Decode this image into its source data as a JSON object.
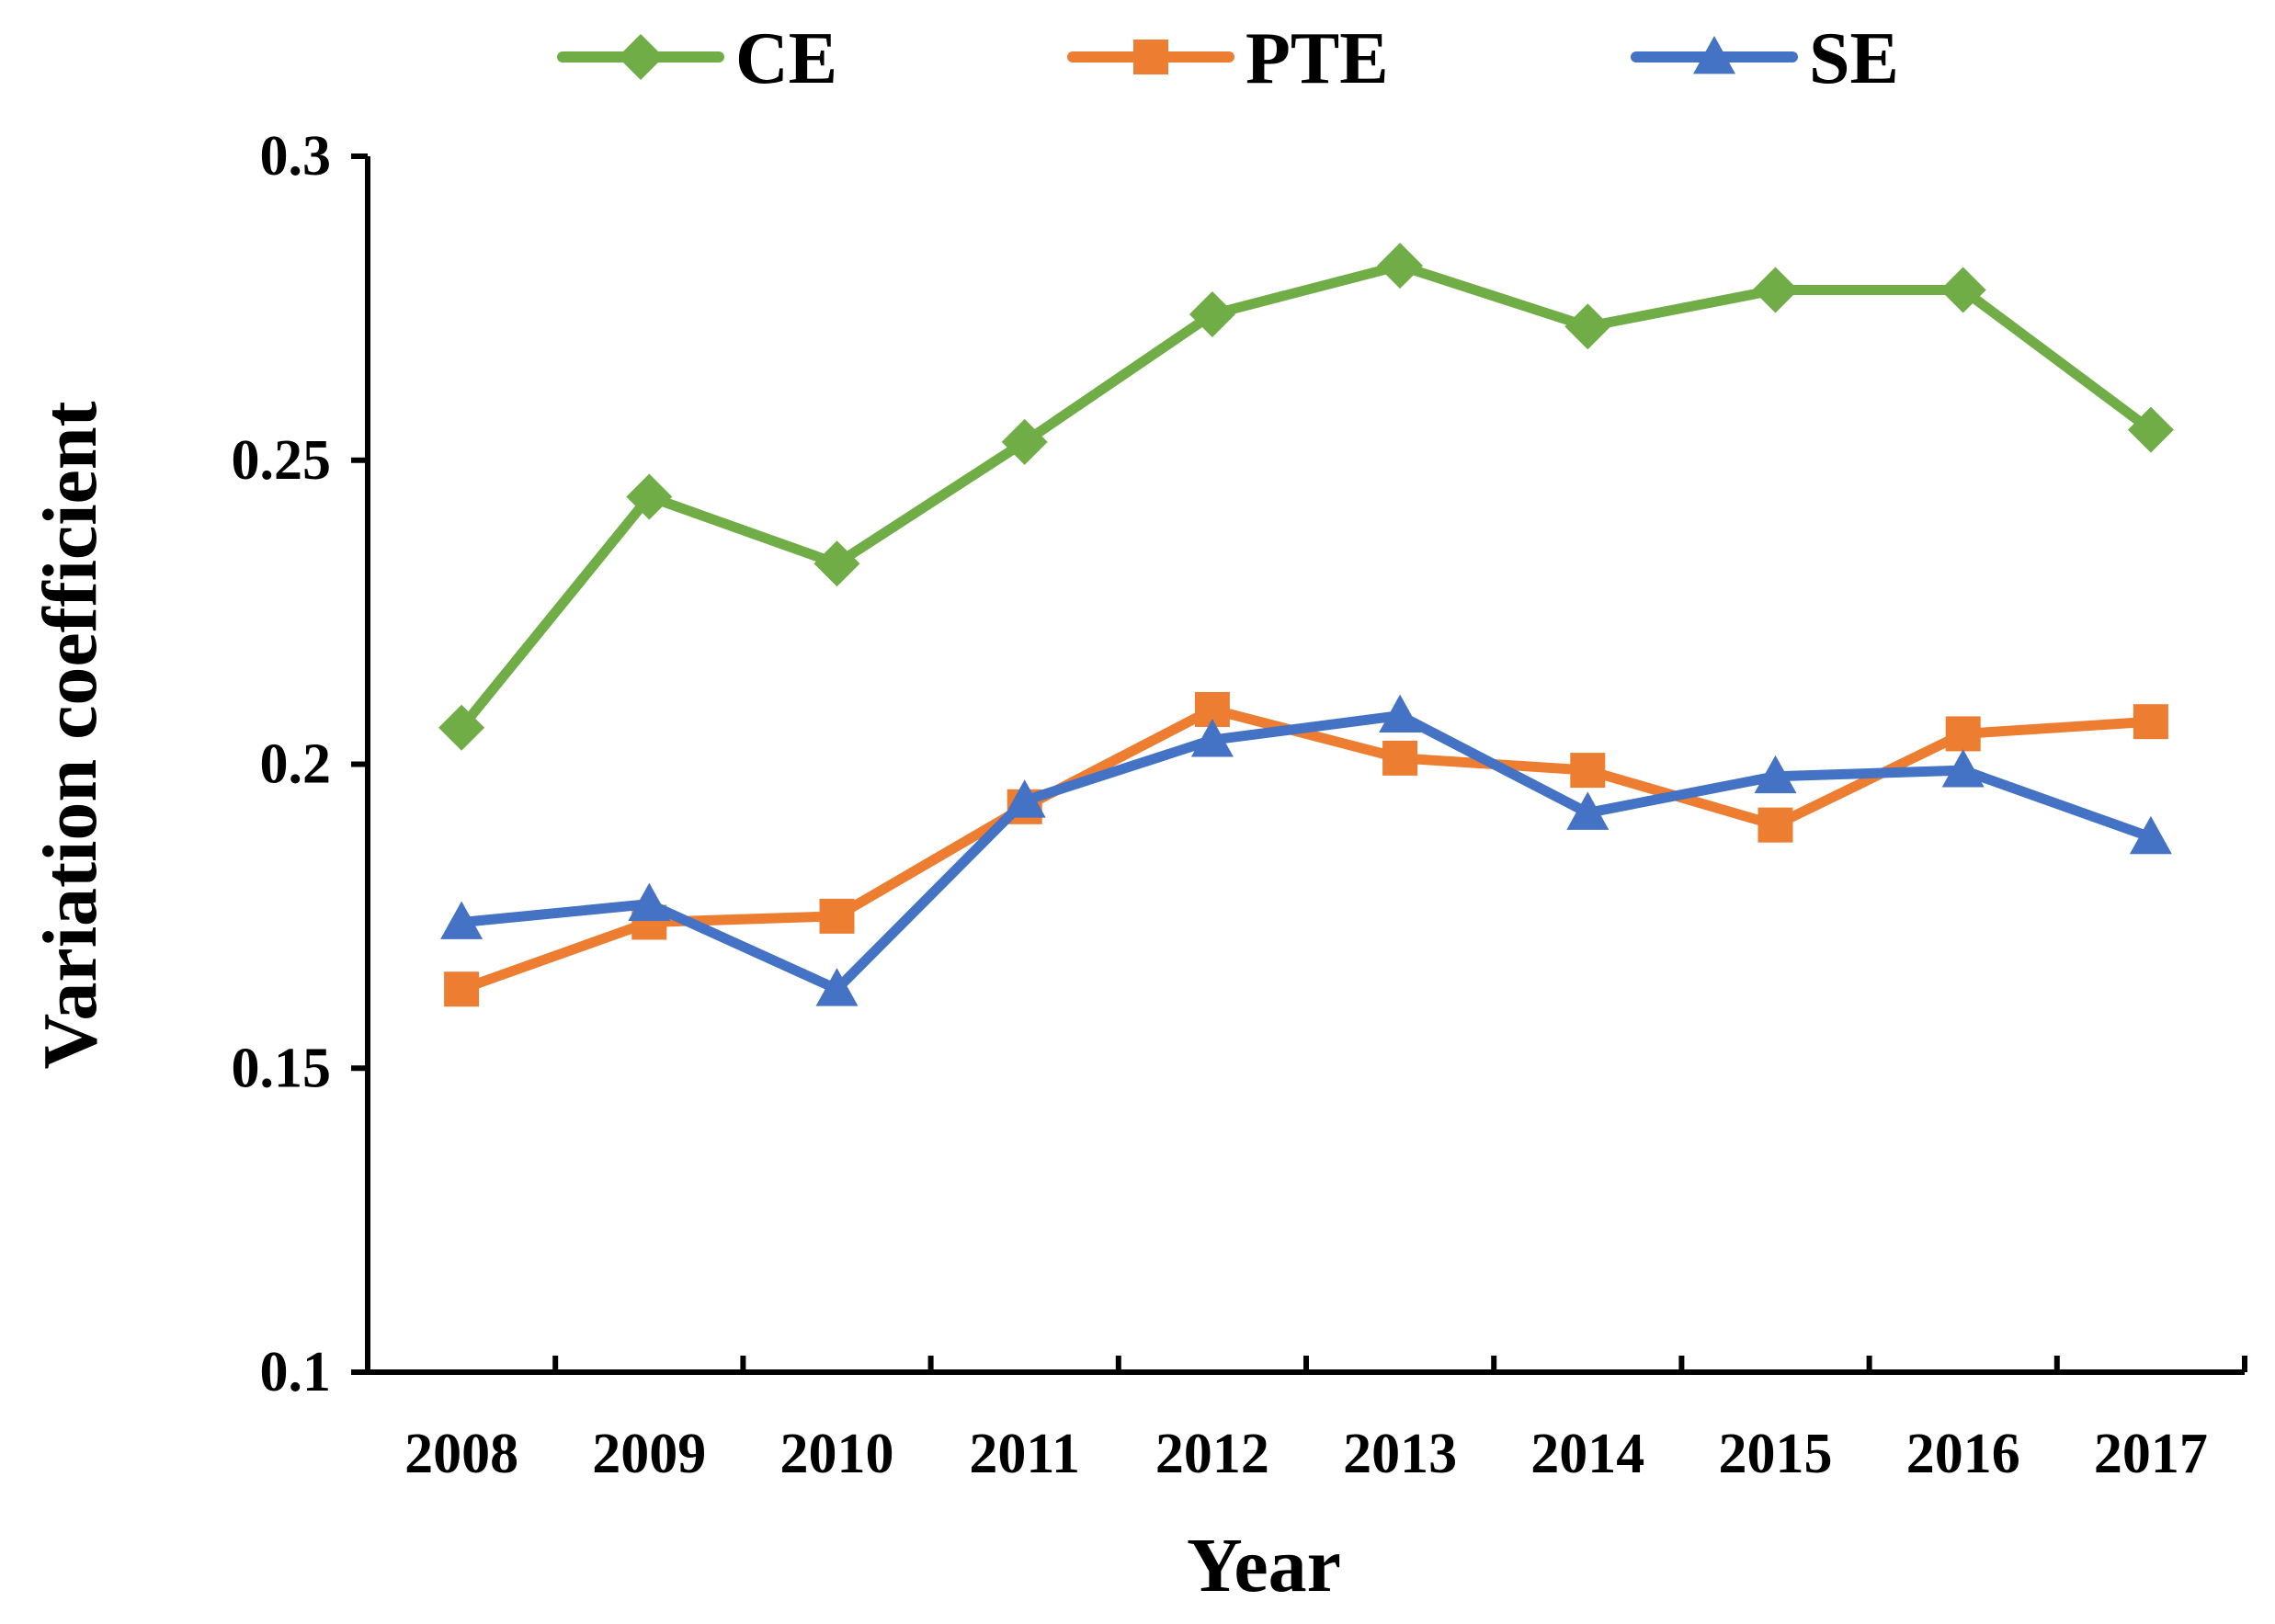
{
  "chart_data": {
    "type": "line",
    "title": "",
    "xlabel": "Year",
    "ylabel": "Variation coefficient",
    "categories": [
      "2008",
      "2009",
      "2010",
      "2011",
      "2012",
      "2013",
      "2014",
      "2015",
      "2016",
      "2017"
    ],
    "ylim": [
      0.1,
      0.3
    ],
    "yticks": [
      0.1,
      0.15,
      0.2,
      0.25,
      0.3
    ],
    "ytick_labels": [
      "0.1",
      "0.15",
      "0.2",
      "0.25",
      "0.3"
    ],
    "grid": false,
    "legend_position": "top",
    "series": [
      {
        "name": "CE",
        "color": "#70ad47",
        "marker": "diamond",
        "values": [
          0.206,
          0.244,
          0.233,
          0.253,
          0.274,
          0.282,
          0.272,
          0.278,
          0.278,
          0.255
        ]
      },
      {
        "name": "PTE",
        "color": "#ed7d31",
        "marker": "square",
        "values": [
          0.163,
          0.174,
          0.175,
          0.193,
          0.209,
          0.201,
          0.199,
          0.19,
          0.205,
          0.207
        ]
      },
      {
        "name": "SE",
        "color": "#4472c4",
        "marker": "triangle",
        "values": [
          0.174,
          0.177,
          0.163,
          0.194,
          0.204,
          0.208,
          0.192,
          0.198,
          0.199,
          0.188
        ]
      }
    ]
  }
}
